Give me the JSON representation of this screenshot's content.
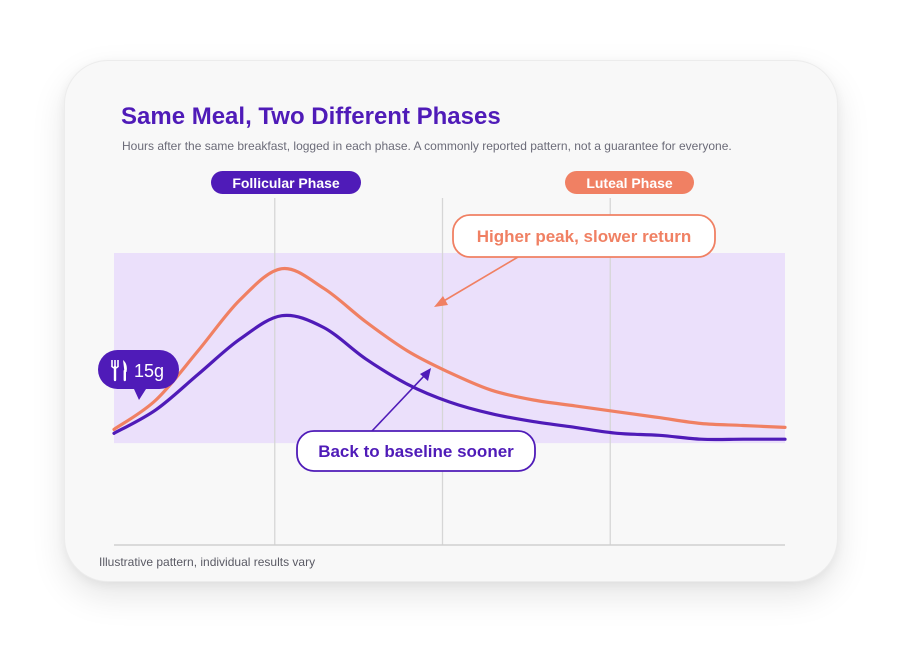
{
  "title": "Same Meal, Two Different Phases",
  "subtitle": "Hours after the same breakfast, logged in each phase. A commonly reported pattern, not a guarantee for everyone.",
  "footnote": "Illustrative pattern, individual results vary",
  "colors": {
    "follicular": "#4f1bb8",
    "luteal": "#f08063",
    "band": "#ebe0fb",
    "gridline": "#d6d6d6"
  },
  "meal_marker": {
    "icon": "fork-knife-icon",
    "label": "15g"
  },
  "phase_labels": {
    "follicular": "Follicular Phase",
    "luteal": "Luteal Phase"
  },
  "callouts": {
    "luteal": "Higher peak, slower return",
    "follicular": "Back to baseline sooner"
  },
  "chart_data": {
    "type": "line",
    "x": [
      0,
      0.25,
      0.5,
      0.75,
      1,
      1.25,
      1.5,
      1.75,
      2,
      2.25,
      2.5,
      2.75,
      3,
      3.25,
      3.5,
      3.75,
      4
    ],
    "series": [
      {
        "name": "Luteal Phase",
        "color": "#f08063",
        "values": [
          0.1,
          0.25,
          0.5,
          0.76,
          0.92,
          0.82,
          0.65,
          0.5,
          0.39,
          0.3,
          0.25,
          0.22,
          0.19,
          0.16,
          0.13,
          0.12,
          0.11
        ]
      },
      {
        "name": "Follicular Phase",
        "color": "#4f1bb8",
        "values": [
          0.08,
          0.2,
          0.38,
          0.56,
          0.68,
          0.62,
          0.46,
          0.33,
          0.24,
          0.18,
          0.14,
          0.11,
          0.08,
          0.07,
          0.05,
          0.05,
          0.05
        ]
      }
    ],
    "ylim": [
      0,
      1
    ],
    "xlim": [
      0,
      4
    ],
    "target_band": [
      0.03,
      1.0
    ],
    "grid": "vertical",
    "legend": "none"
  }
}
